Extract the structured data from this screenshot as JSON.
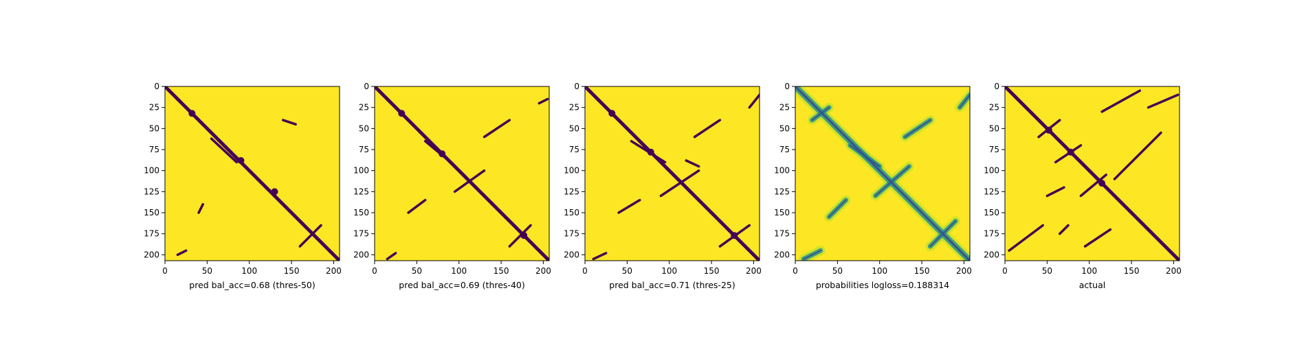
{
  "chart_data": {
    "type": "heatmap",
    "colors": {
      "background": "#fde725",
      "contact": "#440154",
      "mid_teal": "#21918c",
      "mid_green": "#5ec962",
      "mid_blue": "#3b528b",
      "light_green": "#b5de2b"
    },
    "matrix_size": 207,
    "panels": [
      {
        "xlabel": "pred bal_acc=0.68 (thres-50)",
        "type": "heatmap",
        "x_ticks": [
          0,
          50,
          100,
          150,
          200
        ],
        "y_ticks": [
          0,
          25,
          50,
          75,
          100,
          125,
          150,
          175,
          200
        ],
        "xlim": [
          0,
          207
        ],
        "ylim": [
          207,
          0
        ],
        "contact_segments": [
          [
            [
              0,
              0
            ],
            [
              207,
              207
            ]
          ],
          [
            [
              55,
              62
            ],
            [
              85,
              90
            ]
          ],
          [
            [
              140,
              40
            ],
            [
              155,
              45
            ]
          ],
          [
            [
              40,
              150
            ],
            [
              45,
              140
            ]
          ],
          [
            [
              160,
              190
            ],
            [
              185,
              165
            ]
          ],
          [
            [
              15,
              200
            ],
            [
              25,
              195
            ]
          ]
        ],
        "contact_blobs": [
          [
            32,
            32
          ],
          [
            90,
            88
          ],
          [
            130,
            125
          ]
        ]
      },
      {
        "xlabel": "pred bal_acc=0.69 (thres-40)",
        "type": "heatmap",
        "x_ticks": [
          0,
          50,
          100,
          150,
          200
        ],
        "y_ticks": [
          0,
          25,
          50,
          75,
          100,
          125,
          150,
          175,
          200
        ],
        "xlim": [
          0,
          207
        ],
        "ylim": [
          207,
          0
        ],
        "contact_segments": [
          [
            [
              0,
              0
            ],
            [
              207,
              207
            ]
          ],
          [
            [
              60,
              65
            ],
            [
              90,
              90
            ]
          ],
          [
            [
              130,
              60
            ],
            [
              160,
              40
            ]
          ],
          [
            [
              40,
              150
            ],
            [
              60,
              135
            ]
          ],
          [
            [
              95,
              125
            ],
            [
              130,
              100
            ]
          ],
          [
            [
              160,
              190
            ],
            [
              185,
              165
            ]
          ],
          [
            [
              15,
              205
            ],
            [
              25,
              198
            ]
          ],
          [
            [
              195,
              20
            ],
            [
              205,
              15
            ]
          ]
        ],
        "contact_blobs": [
          [
            32,
            32
          ],
          [
            80,
            80
          ],
          [
            177,
            177
          ]
        ]
      },
      {
        "xlabel": "pred bal_acc=0.71 (thres-25)",
        "type": "heatmap",
        "x_ticks": [
          0,
          50,
          100,
          150,
          200
        ],
        "y_ticks": [
          0,
          25,
          50,
          75,
          100,
          125,
          150,
          175,
          200
        ],
        "xlim": [
          0,
          207
        ],
        "ylim": [
          207,
          0
        ],
        "contact_segments": [
          [
            [
              0,
              0
            ],
            [
              207,
              207
            ]
          ],
          [
            [
              55,
              65
            ],
            [
              95,
              90
            ]
          ],
          [
            [
              130,
              60
            ],
            [
              160,
              40
            ]
          ],
          [
            [
              40,
              150
            ],
            [
              65,
              135
            ]
          ],
          [
            [
              90,
              130
            ],
            [
              135,
              100
            ]
          ],
          [
            [
              160,
              190
            ],
            [
              195,
              165
            ]
          ],
          [
            [
              10,
              205
            ],
            [
              25,
              198
            ]
          ],
          [
            [
              195,
              25
            ],
            [
              207,
              10
            ]
          ],
          [
            [
              120,
              88
            ],
            [
              135,
              95
            ]
          ]
        ],
        "contact_blobs": [
          [
            32,
            32
          ],
          [
            78,
            78
          ],
          [
            177,
            177
          ]
        ]
      },
      {
        "xlabel": "probabilities logloss=0.188314",
        "type": "heatmap",
        "x_ticks": [
          0,
          50,
          100,
          150,
          200
        ],
        "y_ticks": [
          0,
          25,
          50,
          75,
          100,
          125,
          150,
          175,
          200
        ],
        "xlim": [
          0,
          207
        ],
        "ylim": [
          207,
          0
        ],
        "contact_segments": [
          [
            [
              0,
              0
            ],
            [
              207,
              207
            ]
          ],
          [
            [
              20,
              40
            ],
            [
              40,
              25
            ]
          ],
          [
            [
              65,
              70
            ],
            [
              100,
              95
            ]
          ],
          [
            [
              130,
              60
            ],
            [
              160,
              40
            ]
          ],
          [
            [
              40,
              155
            ],
            [
              60,
              135
            ]
          ],
          [
            [
              95,
              130
            ],
            [
              135,
              95
            ]
          ],
          [
            [
              160,
              190
            ],
            [
              190,
              160
            ]
          ],
          [
            [
              10,
              205
            ],
            [
              30,
              195
            ]
          ],
          [
            [
              195,
              25
            ],
            [
              207,
              10
            ]
          ]
        ],
        "contact_blobs": []
      },
      {
        "xlabel": "actual",
        "type": "heatmap",
        "x_ticks": [
          0,
          50,
          100,
          150,
          200
        ],
        "y_ticks": [
          0,
          25,
          50,
          75,
          100,
          125,
          150,
          175,
          200
        ],
        "xlim": [
          0,
          207
        ],
        "ylim": [
          207,
          0
        ],
        "contact_segments": [
          [
            [
              0,
              0
            ],
            [
              207,
              207
            ]
          ],
          [
            [
              5,
              195
            ],
            [
              45,
              165
            ]
          ],
          [
            [
              40,
              60
            ],
            [
              65,
              40
            ]
          ],
          [
            [
              60,
              90
            ],
            [
              90,
              70
            ]
          ],
          [
            [
              70,
              70
            ],
            [
              95,
              95
            ]
          ],
          [
            [
              90,
              130
            ],
            [
              120,
              105
            ]
          ],
          [
            [
              115,
              30
            ],
            [
              160,
              5
            ]
          ],
          [
            [
              130,
              110
            ],
            [
              185,
              55
            ]
          ],
          [
            [
              170,
              25
            ],
            [
              205,
              10
            ]
          ],
          [
            [
              95,
              190
            ],
            [
              125,
              170
            ]
          ],
          [
            [
              50,
              130
            ],
            [
              70,
              120
            ]
          ],
          [
            [
              65,
              175
            ],
            [
              75,
              165
            ]
          ]
        ],
        "contact_blobs": [
          [
            52,
            52
          ],
          [
            78,
            78
          ],
          [
            115,
            115
          ]
        ]
      }
    ]
  }
}
